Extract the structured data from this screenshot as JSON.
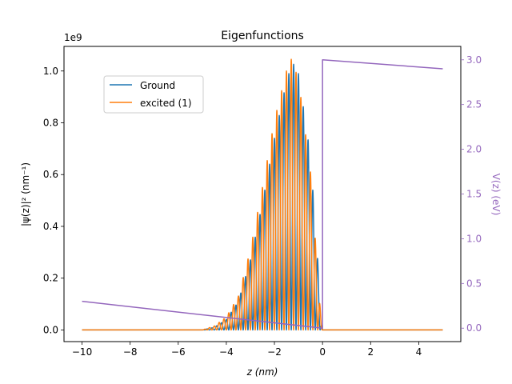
{
  "chart_data": {
    "type": "line",
    "title": "Eigenfunctions",
    "xlabel": "z (nm)",
    "ylabel_left": "|ψ(z)|² (nm⁻¹)",
    "ylabel_right": "V(z) (eV)",
    "offset_text": "1e9",
    "xlim": [
      -10.75,
      5.75
    ],
    "ylim_left": [
      -0.045,
      1.095
    ],
    "ylim_right": [
      -0.15,
      3.15
    ],
    "x_ticks": [
      -10,
      -8,
      -6,
      -4,
      -2,
      0,
      2,
      4
    ],
    "x_tick_labels": [
      "−10",
      "−8",
      "−6",
      "−4",
      "−2",
      "0",
      "2",
      "4"
    ],
    "y_left_ticks": [
      0.0,
      0.2,
      0.4,
      0.6,
      0.8,
      1.0
    ],
    "y_left_tick_labels": [
      "0.0",
      "0.2",
      "0.4",
      "0.6",
      "0.8",
      "1.0"
    ],
    "y_right_ticks": [
      0.0,
      0.5,
      1.0,
      1.5,
      2.0,
      2.5,
      3.0
    ],
    "y_right_tick_labels": [
      "0.0",
      "0.5",
      "1.0",
      "1.5",
      "2.0",
      "2.5",
      "3.0"
    ],
    "legend": {
      "placement": "upper-left",
      "entries": [
        "Ground",
        "excited (1)"
      ]
    },
    "series": [
      {
        "name": "Ground",
        "color": "#1f77b4",
        "axis": "left",
        "envelope": {
          "x": [
            -10,
            -5,
            -4.5,
            -4,
            -3.5,
            -3,
            -2.5,
            -2,
            -1.5,
            -1.25,
            -1,
            -0.5,
            -0.2,
            -0.05,
            0,
            5
          ],
          "y": [
            0,
            0,
            0.01,
            0.04,
            0.11,
            0.27,
            0.49,
            0.74,
            0.96,
            1.035,
            0.99,
            0.67,
            0.27,
            0.03,
            0,
            0
          ]
        },
        "oscillation_period_nm": 0.2,
        "phase": 0
      },
      {
        "name": "excited (1)",
        "color": "#ff7f0e",
        "axis": "left",
        "envelope": {
          "x": [
            -10,
            -5,
            -4.5,
            -4,
            -3.5,
            -3,
            -2.5,
            -2,
            -1.5,
            -1.3,
            -1,
            -0.5,
            -0.2,
            -0.05,
            0,
            5
          ],
          "y": [
            0,
            0,
            0.015,
            0.05,
            0.13,
            0.31,
            0.55,
            0.81,
            1.0,
            1.045,
            0.97,
            0.61,
            0.22,
            0.02,
            0,
            0
          ]
        },
        "oscillation_period_nm": 0.2,
        "phase": 0.5
      },
      {
        "name": "V(z)",
        "color": "#9467bd",
        "axis": "right",
        "x": [
          -10,
          0,
          0,
          5
        ],
        "y": [
          0.3,
          0.0,
          3.0,
          2.9
        ]
      }
    ]
  }
}
